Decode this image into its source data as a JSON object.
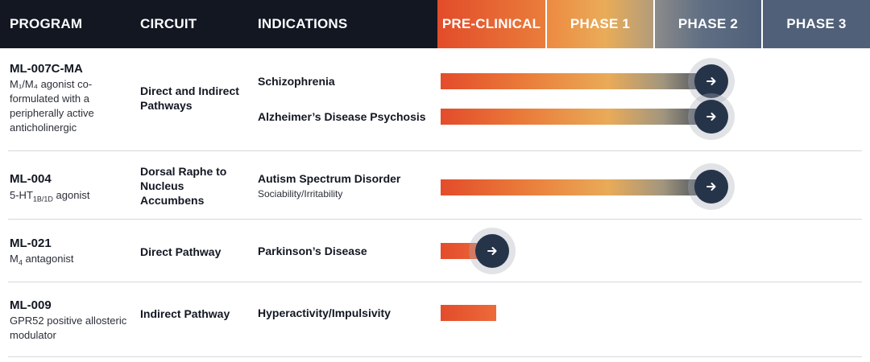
{
  "header": {
    "program": "PROGRAM",
    "circuit": "CIRCUIT",
    "indications": "INDICATIONS",
    "phases": [
      "PRE-CLINICAL",
      "PHASE 1",
      "PHASE 2",
      "PHASE 3"
    ]
  },
  "rows": [
    {
      "program": "ML-007C-MA",
      "description": "M₁/M₄ agonist co-formulated with a peripherally active anticholinergic",
      "circuit": "Direct and Indirect Pathways",
      "indications": [
        {
          "name": "Schizophrenia",
          "progress": 0.63
        },
        {
          "name": "Alzheimer’s Disease Psychosis",
          "progress": 0.63
        }
      ]
    },
    {
      "program": "ML-004",
      "description_main": "5-HT",
      "description_sub": "1B/1D",
      "description_tail": " agonist",
      "circuit": "Dorsal Raphe to Nucleus Accumbens",
      "indications": [
        {
          "name": "Autism Spectrum Disorder",
          "sub": "Sociability/Irritability",
          "progress": 0.63
        }
      ]
    },
    {
      "program": "ML-021",
      "description_main": "M",
      "description_sub": "4",
      "description_tail": " antagonist",
      "circuit": "Direct Pathway",
      "indications": [
        {
          "name": "Parkinson’s Disease",
          "progress": 0.12
        }
      ]
    },
    {
      "program": "ML-009",
      "description": "GPR52 positive allosteric modulator",
      "circuit": "Indirect Pathway",
      "indications": [
        {
          "name": "Hyperactivity/Impulsivity",
          "progress": 0.13
        }
      ]
    }
  ],
  "icons": {
    "advance": "arrow-right-icon"
  },
  "colors": {
    "header_dark": "#121722",
    "arrow_button": "#253449",
    "bar_start": "#e34c2b",
    "phase3": "#506078"
  }
}
